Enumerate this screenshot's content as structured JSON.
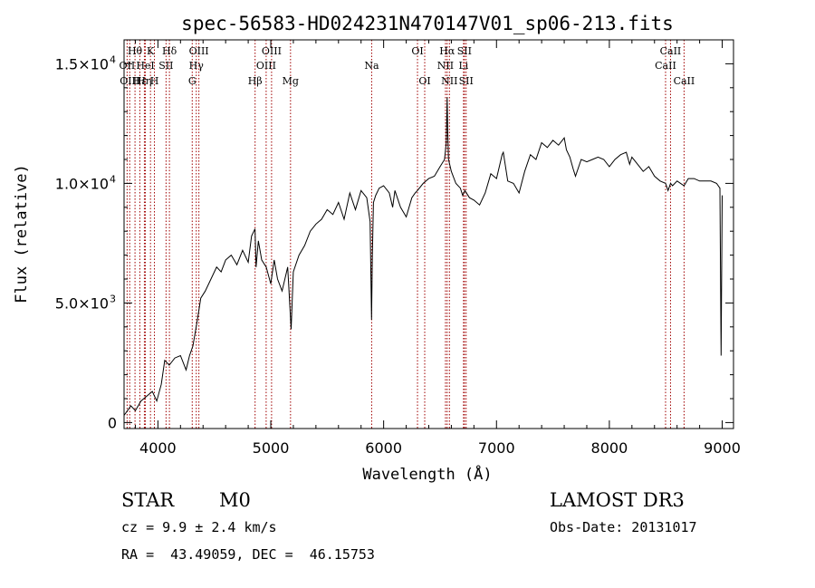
{
  "title": "spec-56583-HD024231N470147V01_sp06-213.fits",
  "info": {
    "class": "STAR",
    "subclass": "M0",
    "survey": "LAMOST DR3",
    "cz": "cz = 9.9 ± 2.4 km/s",
    "obs_date": "Obs-Date: 20131017",
    "coords": "RA =  43.49059, DEC =  46.15753"
  },
  "chart_data": {
    "type": "line",
    "title": "spec-56583-HD024231N470147V01_sp06-213.fits",
    "xlabel": "Wavelength (Å)",
    "ylabel": "Flux (relative)",
    "xlim": [
      3700,
      9100
    ],
    "ylim": [
      -250,
      16000
    ],
    "x_ticks": [
      {
        "value": 4000,
        "label": "4000"
      },
      {
        "value": 5000,
        "label": "5000"
      },
      {
        "value": 6000,
        "label": "6000"
      },
      {
        "value": 7000,
        "label": "7000"
      },
      {
        "value": 8000,
        "label": "8000"
      },
      {
        "value": 9000,
        "label": "9000"
      }
    ],
    "y_ticks": [
      {
        "value": 0,
        "mant": "0",
        "exp": ""
      },
      {
        "value": 5000,
        "mant": "5.0×10",
        "exp": "3"
      },
      {
        "value": 10000,
        "mant": "1.0×10",
        "exp": "4"
      },
      {
        "value": 15000,
        "mant": "1.5×10",
        "exp": "4"
      }
    ],
    "line_color": "#000000",
    "marker_color": "#a00000",
    "spectrum": {
      "x": [
        3700,
        3760,
        3800,
        3850,
        3900,
        3950,
        3990,
        4030,
        4060,
        4100,
        4150,
        4200,
        4250,
        4280,
        4310,
        4350,
        4380,
        4420,
        4480,
        4520,
        4560,
        4600,
        4650,
        4700,
        4750,
        4800,
        4830,
        4860,
        4870,
        4890,
        4920,
        4960,
        5000,
        5030,
        5060,
        5100,
        5150,
        5180,
        5200,
        5250,
        5300,
        5350,
        5400,
        5450,
        5500,
        5550,
        5600,
        5650,
        5700,
        5750,
        5800,
        5850,
        5880,
        5893,
        5900,
        5910,
        5930,
        5960,
        6000,
        6050,
        6080,
        6100,
        6150,
        6200,
        6250,
        6280,
        6300,
        6350,
        6400,
        6450,
        6500,
        6540,
        6555,
        6563,
        6568,
        6575,
        6600,
        6640,
        6680,
        6700,
        6720,
        6760,
        6800,
        6850,
        6900,
        6950,
        7000,
        7050,
        7060,
        7100,
        7150,
        7200,
        7250,
        7300,
        7350,
        7400,
        7450,
        7500,
        7550,
        7600,
        7620,
        7650,
        7680,
        7700,
        7750,
        7800,
        7850,
        7900,
        7950,
        8000,
        8050,
        8100,
        8150,
        8180,
        8200,
        8250,
        8300,
        8350,
        8400,
        8450,
        8498,
        8520,
        8542,
        8560,
        8600,
        8662,
        8700,
        8750,
        8800,
        8850,
        8900,
        8950,
        8980,
        8990,
        9000
      ],
      "y": [
        300,
        700,
        500,
        900,
        1100,
        1300,
        900,
        1600,
        2600,
        2400,
        2700,
        2800,
        2200,
        2800,
        3200,
        4300,
        5200,
        5500,
        6100,
        6500,
        6300,
        6800,
        7000,
        6600,
        7200,
        6700,
        7800,
        8100,
        6500,
        7600,
        6800,
        6500,
        5800,
        6800,
        6000,
        5500,
        6500,
        3900,
        6300,
        7000,
        7400,
        8000,
        8300,
        8500,
        8900,
        8700,
        9200,
        8500,
        9600,
        8900,
        9700,
        9400,
        8400,
        4300,
        7000,
        9200,
        9500,
        9800,
        9900,
        9600,
        9000,
        9700,
        9000,
        8600,
        9400,
        9600,
        9700,
        10000,
        10200,
        10300,
        10700,
        11000,
        11700,
        13600,
        12200,
        11000,
        10500,
        10000,
        9800,
        9500,
        9700,
        9400,
        9300,
        9100,
        9600,
        10400,
        10200,
        11200,
        11300,
        10100,
        10000,
        9600,
        10500,
        11200,
        11000,
        11700,
        11500,
        11800,
        11600,
        11900,
        11400,
        11100,
        10600,
        10300,
        11000,
        10900,
        11000,
        11100,
        11000,
        10700,
        11000,
        11200,
        11300,
        10800,
        11100,
        10800,
        10500,
        10700,
        10300,
        10100,
        10000,
        9700,
        10000,
        9900,
        10100,
        9900,
        10200,
        10200,
        10100,
        10100,
        10100,
        10000,
        9800,
        2800,
        9500
      ]
    },
    "lines": [
      {
        "name": "Hθ",
        "x": 3797,
        "row": 1
      },
      {
        "name": "OII",
        "x": 3727,
        "row": 2
      },
      {
        "name": "OIII",
        "x": 3750,
        "row": 3
      },
      {
        "name": "Hε",
        "x": 3840,
        "row": 3
      },
      {
        "name": "HeI",
        "x": 3889,
        "row": 2
      },
      {
        "name": "K",
        "x": 3934,
        "row": 1
      },
      {
        "name": "Hη",
        "x": 3880,
        "row": 3
      },
      {
        "name": "H",
        "x": 3969,
        "row": 3
      },
      {
        "name": "SII",
        "x": 4072,
        "row": 2
      },
      {
        "name": "Hδ",
        "x": 4102,
        "row": 1
      },
      {
        "name": "OIII",
        "x": 4363,
        "row": 1
      },
      {
        "name": "Hγ",
        "x": 4340,
        "row": 2
      },
      {
        "name": "G",
        "x": 4304,
        "row": 3
      },
      {
        "name": "Hβ",
        "x": 4861,
        "row": 3
      },
      {
        "name": "OIII",
        "x": 5007,
        "row": 1
      },
      {
        "name": "OIII",
        "x": 4959,
        "row": 2
      },
      {
        "name": "Mg",
        "x": 5175,
        "row": 3
      },
      {
        "name": "Na",
        "x": 5894,
        "row": 2
      },
      {
        "name": "OI",
        "x": 6300,
        "row": 1
      },
      {
        "name": "OI",
        "x": 6364,
        "row": 3
      },
      {
        "name": "Hα",
        "x": 6563,
        "row": 1
      },
      {
        "name": "NII",
        "x": 6548,
        "row": 2
      },
      {
        "name": "NII",
        "x": 6583,
        "row": 3
      },
      {
        "name": "SII",
        "x": 6716,
        "row": 1
      },
      {
        "name": "Li",
        "x": 6708,
        "row": 2
      },
      {
        "name": "SII",
        "x": 6731,
        "row": 3
      },
      {
        "name": "CaII",
        "x": 8498,
        "row": 2
      },
      {
        "name": "CaII",
        "x": 8542,
        "row": 1
      },
      {
        "name": "CaII",
        "x": 8662,
        "row": 3
      }
    ]
  }
}
